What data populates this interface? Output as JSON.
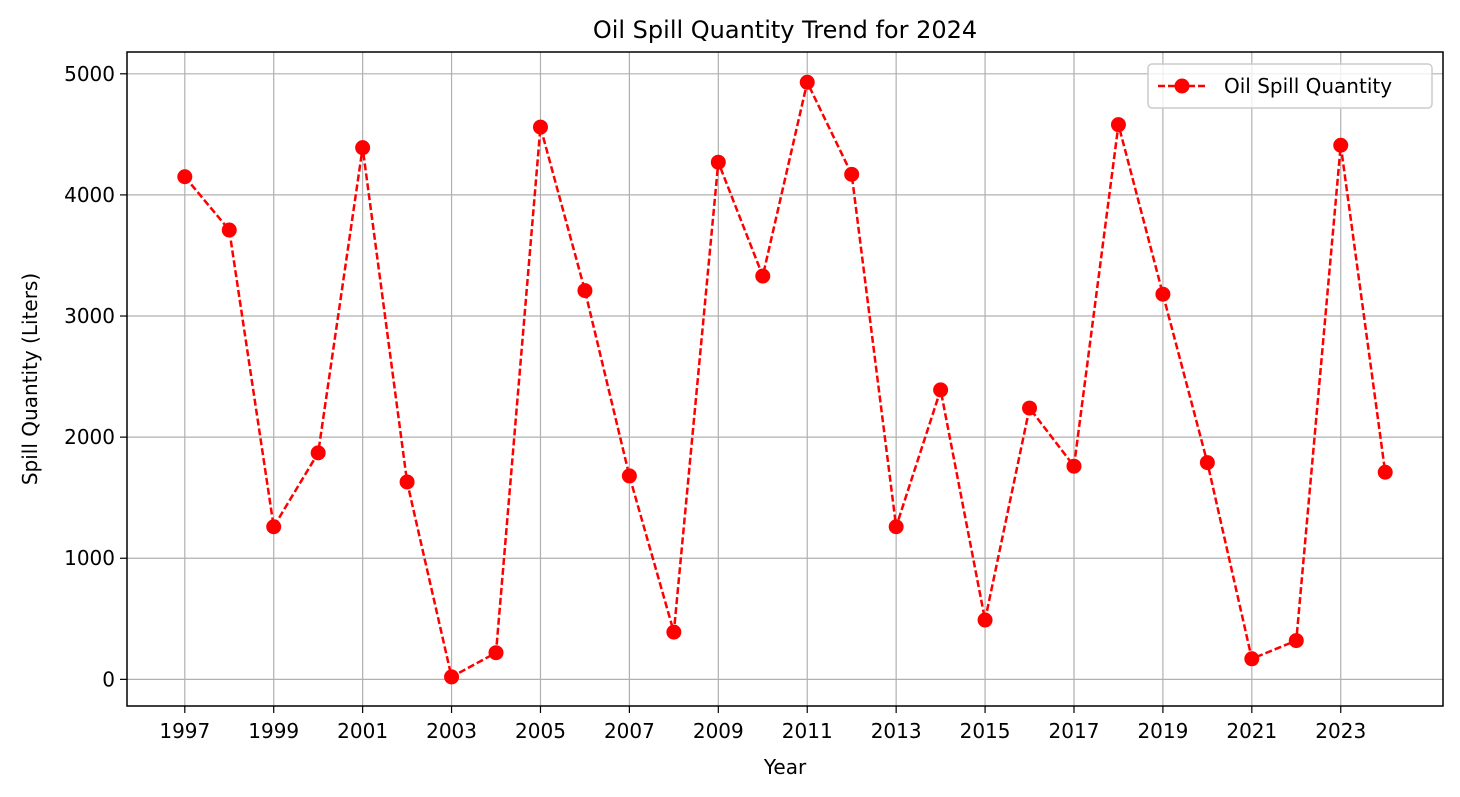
{
  "chart_data": {
    "type": "line",
    "title": "Oil Spill Quantity Trend for 2024",
    "xlabel": "Year",
    "ylabel": "Spill Quantity (Liters)",
    "xlim": [
      1995.7,
      2025.3
    ],
    "ylim": [
      -220,
      5180
    ],
    "x_ticks": [
      1997,
      1999,
      2001,
      2003,
      2005,
      2007,
      2009,
      2011,
      2013,
      2015,
      2017,
      2019,
      2021,
      2023
    ],
    "x_tick_labels": [
      "1997",
      "1999",
      "2001",
      "2003",
      "2005",
      "2007",
      "2009",
      "2011",
      "2013",
      "2015",
      "2017",
      "2019",
      "2021",
      "2023"
    ],
    "y_ticks": [
      0,
      1000,
      2000,
      3000,
      4000,
      5000
    ],
    "y_tick_labels": [
      "0",
      "1000",
      "2000",
      "3000",
      "4000",
      "5000"
    ],
    "grid": true,
    "legend_position": "top-right",
    "series": [
      {
        "name": "Oil Spill Quantity",
        "color": "#ff0000",
        "line_style": "dashed",
        "marker": "circle",
        "x": [
          1997,
          1998,
          1999,
          2000,
          2001,
          2002,
          2003,
          2004,
          2005,
          2006,
          2007,
          2008,
          2009,
          2010,
          2011,
          2012,
          2013,
          2014,
          2015,
          2016,
          2017,
          2018,
          2019,
          2020,
          2021,
          2022,
          2023,
          2024
        ],
        "y": [
          4150,
          3710,
          1260,
          1870,
          4390,
          1630,
          20,
          220,
          4560,
          3210,
          1680,
          390,
          4270,
          3330,
          4930,
          4170,
          1260,
          2390,
          490,
          2240,
          1760,
          4580,
          3180,
          1790,
          170,
          320,
          4410,
          1710
        ]
      }
    ]
  }
}
